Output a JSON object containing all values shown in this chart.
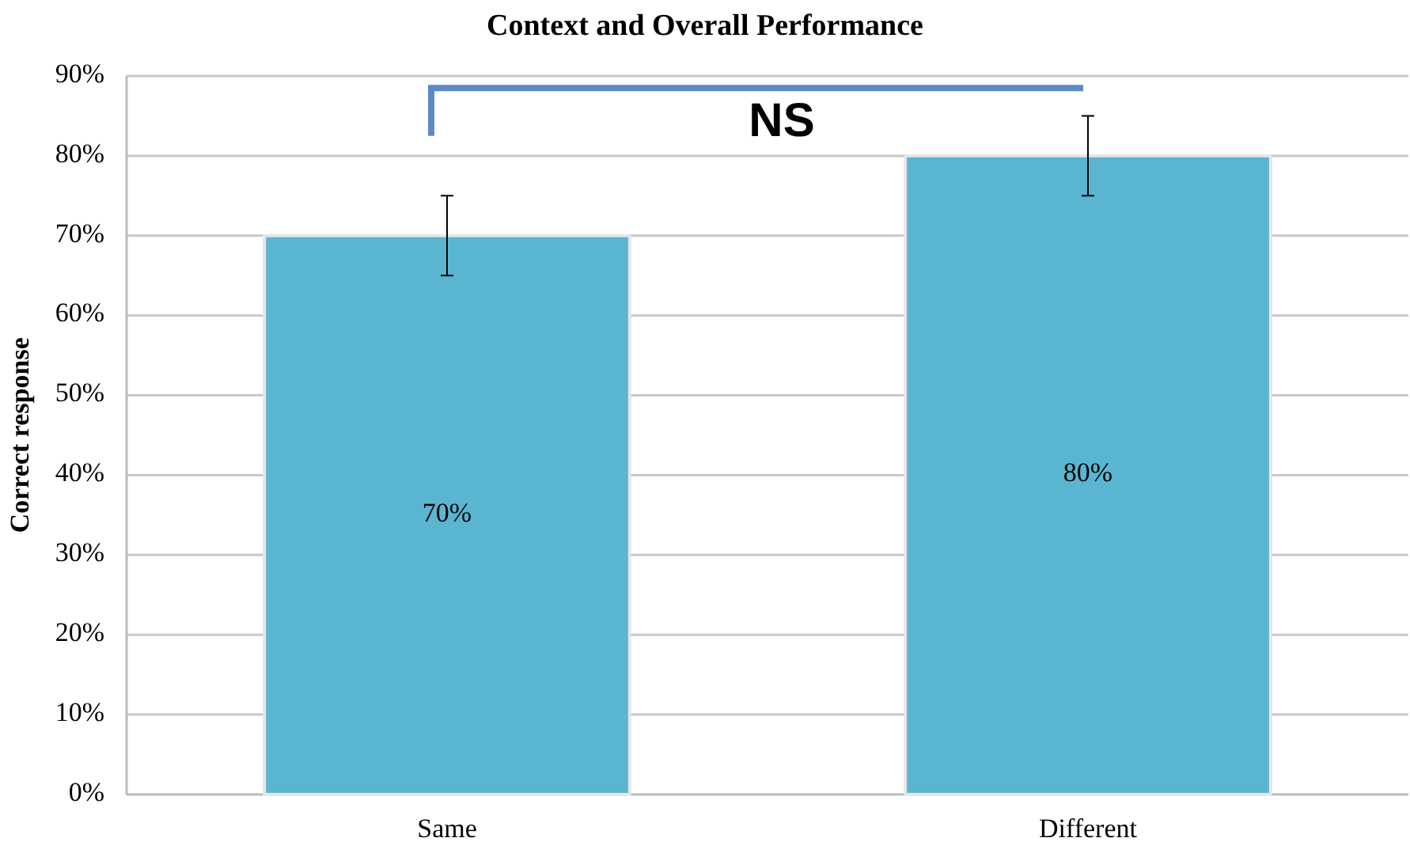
{
  "chart_data": {
    "type": "bar",
    "title": "Context and Overall Performance",
    "ylabel": "Correct response",
    "categories": [
      "Same",
      "Different"
    ],
    "values": [
      70,
      80
    ],
    "errors": [
      5,
      5
    ],
    "color": "#5ab5d0",
    "value_labels": [
      "70%",
      "80%"
    ],
    "ylim": [
      0,
      90
    ],
    "yticks": [
      {
        "value": 0,
        "label": "0%"
      },
      {
        "value": 10,
        "label": "10%"
      },
      {
        "value": 20,
        "label": "20%"
      },
      {
        "value": 30,
        "label": "30%"
      },
      {
        "value": 40,
        "label": "40%"
      },
      {
        "value": 50,
        "label": "50%"
      },
      {
        "value": 60,
        "label": "60%"
      },
      {
        "value": 70,
        "label": "70%"
      },
      {
        "value": 80,
        "label": "80%"
      },
      {
        "value": 90,
        "label": "90%"
      }
    ],
    "grid": "y",
    "annotations": [
      "NS"
    ]
  }
}
